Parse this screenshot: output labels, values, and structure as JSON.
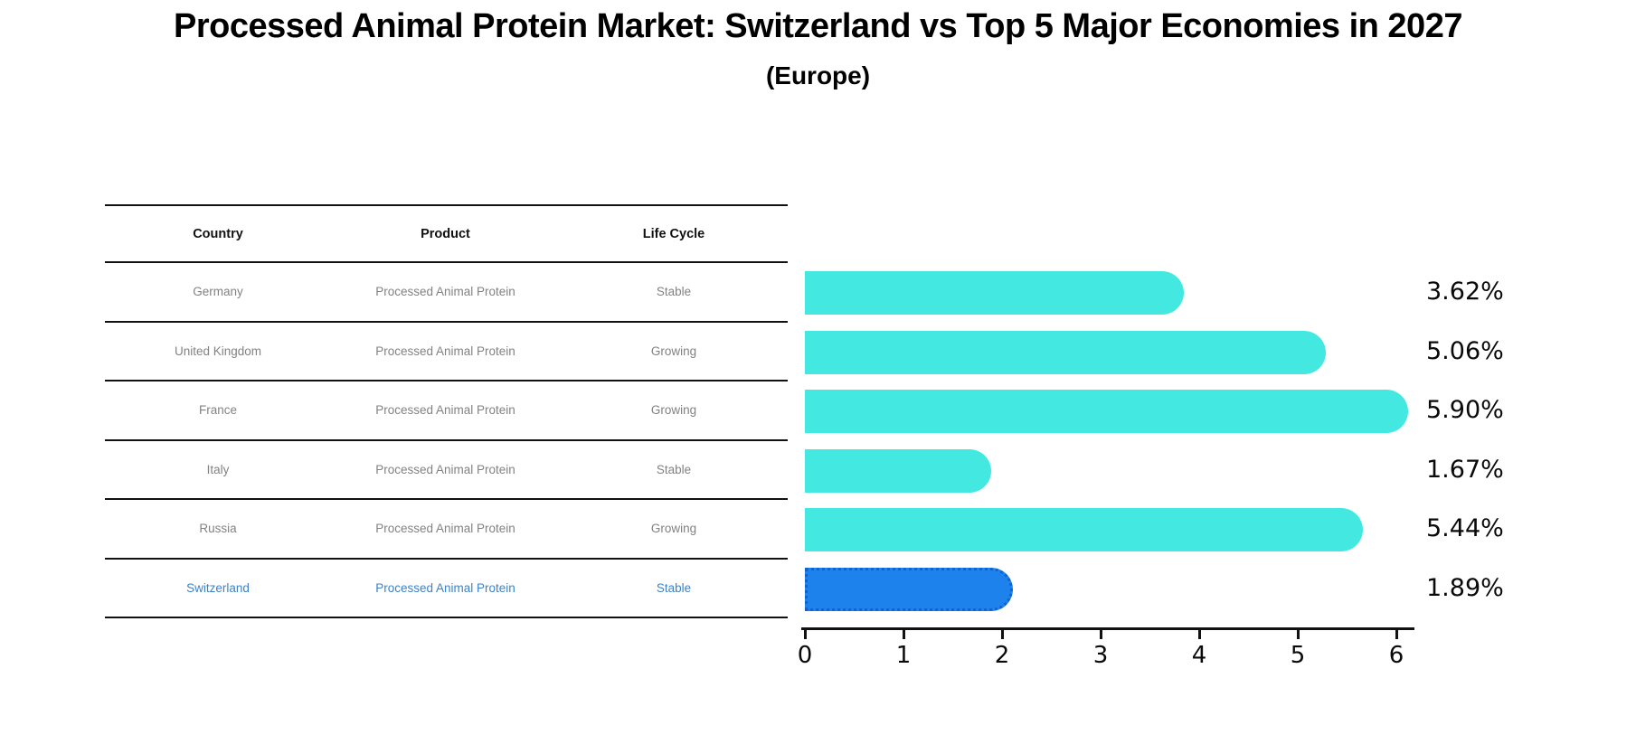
{
  "title": "Processed Animal Protein Market: Switzerland vs Top 5 Major Economies in 2027",
  "subtitle": "(Europe)",
  "table": {
    "headers": [
      "Country",
      "Product",
      "Life Cycle"
    ],
    "rows": [
      {
        "country": "Germany",
        "product": "Processed Animal Protein",
        "life_cycle": "Stable",
        "highlight": false
      },
      {
        "country": "United Kingdom",
        "product": "Processed Animal Protein",
        "life_cycle": "Growing",
        "highlight": false
      },
      {
        "country": "France",
        "product": "Processed Animal Protein",
        "life_cycle": "Growing",
        "highlight": false
      },
      {
        "country": "Italy",
        "product": "Processed Animal Protein",
        "life_cycle": "Stable",
        "highlight": false
      },
      {
        "country": "Russia",
        "product": "Processed Animal Protein",
        "life_cycle": "Growing",
        "highlight": false
      },
      {
        "country": "Switzerland",
        "product": "Processed Animal Protein",
        "life_cycle": "Stable",
        "highlight": true
      }
    ]
  },
  "chart_data": {
    "type": "bar",
    "orientation": "horizontal",
    "title": "Processed Animal Protein Market: Switzerland vs Top 5 Major Economies in 2027",
    "subtitle": "(Europe)",
    "categories": [
      "Germany",
      "United Kingdom",
      "France",
      "Italy",
      "Russia",
      "Switzerland"
    ],
    "values": [
      3.62,
      5.06,
      5.9,
      1.67,
      5.44,
      1.89
    ],
    "value_labels": [
      "3.62%",
      "5.06%",
      "5.90%",
      "1.67%",
      "5.44%",
      "1.89%"
    ],
    "xlim": [
      0,
      6
    ],
    "x_ticks": [
      "0",
      "1",
      "2",
      "3",
      "4",
      "5",
      "6"
    ],
    "grid": false,
    "legend": false,
    "highlight_index": 5,
    "bar_color": "#43E8E1",
    "highlight_bar_color": "#1E82EC",
    "highlight_border_color": "#1263CF"
  },
  "colors": {
    "background": "#FFFFFF",
    "row_text": "#828282",
    "highlight_text": "#3E82C6",
    "header_text": "#111111",
    "axis": "#111111"
  }
}
